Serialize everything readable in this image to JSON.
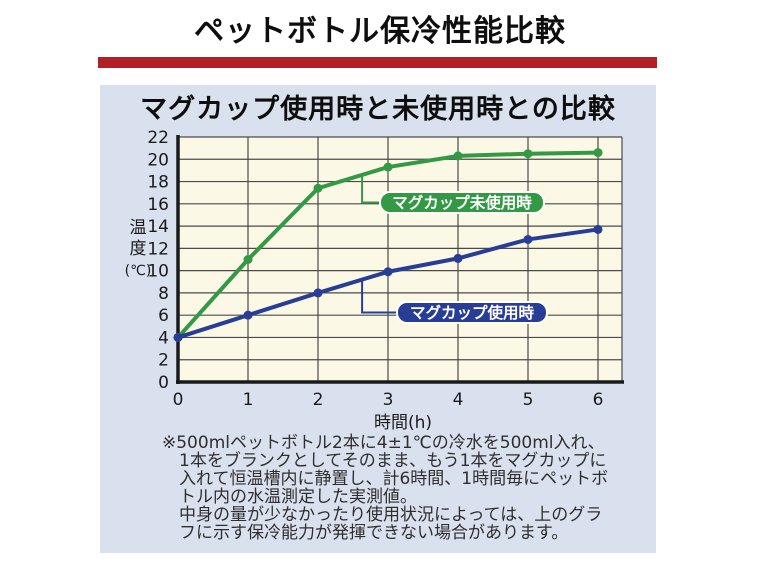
{
  "title": "ペットボトル保冷性能比較",
  "panel": {
    "subtitle": "マグカップ使用時と未使用時との比較",
    "footnote": "※500mlペットボトル2本に4±1℃の冷水を500ml入れ、\n1本をブランクとしてそのまま、もう1本をマグカップに\n入れて恒温槽内に静置し、計6時間、1時間毎にペットボ\nトル内の水温測定した実測値。\n中身の量が少なかったり使用状況によっては、上のグラ\nフに示す保冷能力が発揮できない場合があります。"
  },
  "colors": {
    "accent_red": "#b22025",
    "panel_bg": "#dae1ee",
    "plot_bg": "#fbf9e6",
    "grid": "#4a4a4a",
    "axis": "#1a1a1a",
    "tick_text": "#1a1a1a",
    "badge_text": "#ffffff"
  },
  "chart_data": {
    "type": "line",
    "x": [
      0,
      1,
      2,
      3,
      4,
      5,
      6
    ],
    "xlabel": "時間(h)",
    "ylabel": "温度(℃)",
    "ylabel_lines": [
      "温",
      "度",
      "(℃)"
    ],
    "xlim": [
      0,
      6.35
    ],
    "ylim": [
      0,
      22
    ],
    "ytick_step": 2,
    "grid": true,
    "legend_position": "inline-badges",
    "series": [
      {
        "name": "マグカップ未使用時",
        "key": "unused",
        "color": "#339944",
        "values": [
          4,
          11,
          17.4,
          19.3,
          20.3,
          20.5,
          20.6
        ]
      },
      {
        "name": "マグカップ使用時",
        "key": "used",
        "color": "#283d96",
        "values": [
          4,
          6,
          8,
          9.9,
          11.1,
          12.8,
          13.7
        ]
      }
    ]
  }
}
